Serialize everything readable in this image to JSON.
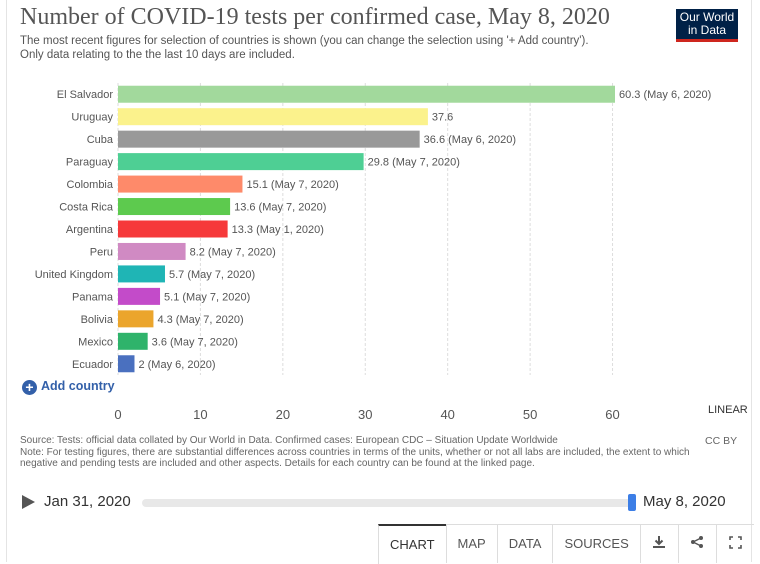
{
  "title": "Number of COVID-19 tests per confirmed case, May 8, 2020",
  "subtitle": "The most recent figures for selection of countries is shown (you can change the selection using '+ Add country'). Only data relating to the the last 10 days are included.",
  "logo": {
    "line1": "Our World",
    "line2": "in Data"
  },
  "add_country_label": "Add country",
  "scale_label": "LINEAR",
  "source_text": "Source: Tests: official data collated by Our World in Data. Confirmed cases: European CDC – Situation Update Worldwide",
  "note_text": "Note: For testing figures, there are substantial differences across countries in terms of the units, whether or not all labs are included, the extent to which negative and pending tests are included and other aspects. Details for each country can be found at the linked page.",
  "license": "CC BY",
  "timeline": {
    "start": "Jan 31, 2020",
    "end": "May 8, 2020",
    "position": 1.0
  },
  "tabs": {
    "chart": "CHART",
    "map": "MAP",
    "data": "DATA",
    "sources": "SOURCES"
  },
  "icons": [
    "download-icon",
    "share-icon",
    "fullscreen-icon"
  ],
  "chart_data": {
    "type": "bar",
    "orientation": "horizontal",
    "categories": [
      "El Salvador",
      "Uruguay",
      "Cuba",
      "Paraguay",
      "Colombia",
      "Costa Rica",
      "Argentina",
      "Peru",
      "United Kingdom",
      "Panama",
      "Bolivia",
      "Mexico",
      "Ecuador"
    ],
    "values": [
      60.3,
      37.6,
      36.6,
      29.8,
      15.1,
      13.6,
      13.3,
      8.2,
      5.7,
      5.1,
      4.3,
      3.6,
      2
    ],
    "value_labels": [
      "60.3 (May 6, 2020)",
      "37.6",
      "36.6 (May 6, 2020)",
      "29.8 (May 7, 2020)",
      "15.1 (May 7, 2020)",
      "13.6 (May 7, 2020)",
      "13.3 (May 1, 2020)",
      "8.2 (May 7, 2020)",
      "5.7 (May 7, 2020)",
      "5.1 (May 7, 2020)",
      "4.3 (May 7, 2020)",
      "3.6 (May 7, 2020)",
      "2 (May 6, 2020)"
    ],
    "colors": [
      "#a2d99c",
      "#fbf28c",
      "#999999",
      "#4ecf94",
      "#fe8a6a",
      "#5dca4e",
      "#f6393a",
      "#d08ac3",
      "#1fb5b5",
      "#c34bc9",
      "#eba52c",
      "#2fb36b",
      "#4a70bf"
    ],
    "xticks": [
      0,
      10,
      20,
      30,
      40,
      50,
      60
    ],
    "xlim": [
      0,
      60.3
    ],
    "grid": true
  }
}
